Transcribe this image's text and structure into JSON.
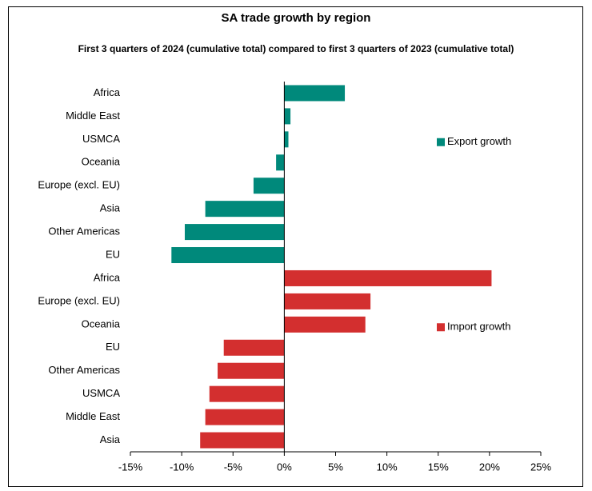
{
  "chart_data": {
    "type": "hbar",
    "title": "SA trade growth by region",
    "subtitle": "First 3 quarters of 2024 (cumulative total) compared to first 3 quarters of 2023 (cumulative total)",
    "categories": [
      "Africa",
      "Middle East",
      "USMCA",
      "Oceania",
      "Europe (excl. EU)",
      "Asia",
      "Other Americas",
      "EU",
      "Africa",
      "Europe (excl. EU)",
      "Oceania",
      "EU",
      "Other Americas",
      "USMCA",
      "Middle East",
      "Asia"
    ],
    "series": [
      {
        "name": "Export growth",
        "color": "#00897b",
        "values": [
          5.9,
          0.6,
          0.4,
          -0.8,
          -3.0,
          -7.7,
          -9.7,
          -11.0,
          null,
          null,
          null,
          null,
          null,
          null,
          null,
          null
        ]
      },
      {
        "name": "Import growth",
        "color": "#d32f2f",
        "values": [
          null,
          null,
          null,
          null,
          null,
          null,
          null,
          null,
          20.2,
          8.4,
          7.9,
          -5.9,
          -6.5,
          -7.3,
          -7.7,
          -8.2
        ]
      }
    ],
    "xlim": [
      -15,
      25
    ],
    "xticks": [
      {
        "value": -15,
        "label": "-15%"
      },
      {
        "value": -10,
        "label": "-10%"
      },
      {
        "value": -5,
        "label": "-5%"
      },
      {
        "value": 0,
        "label": "0%"
      },
      {
        "value": 5,
        "label": "5%"
      },
      {
        "value": 10,
        "label": "10%"
      },
      {
        "value": 15,
        "label": "15%"
      },
      {
        "value": 20,
        "label": "20%"
      },
      {
        "value": 25,
        "label": "25%"
      }
    ]
  }
}
